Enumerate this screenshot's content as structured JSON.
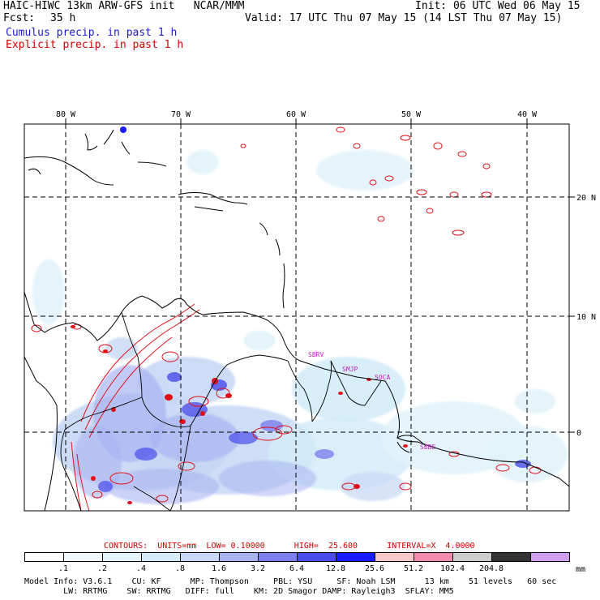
{
  "header": {
    "title": "HAIC-HIWC 13km ARW-GFS init   NCAR/MMM",
    "init": "Init: 06 UTC Wed 06 May 15",
    "fcst_label": "Fcst:",
    "fcst_value": "35 h",
    "valid": "Valid: 17 UTC Thu 07 May 15 (14 LST Thu 07 May 15)",
    "cumulus_label": "Cumulus precip. in past 1 h",
    "explicit_label": "Explicit precip. in past 1 h"
  },
  "map": {
    "lon_labels": [
      "80 W",
      "70 W",
      "60 W",
      "50 W",
      "40 W"
    ],
    "lat_labels": [
      "20 N",
      "10 N",
      "0"
    ],
    "station_labels": [
      "SBRV",
      "SMJP",
      "SOCA",
      "SBBE"
    ],
    "colors": {
      "coast": "#000000",
      "grid": "#000000",
      "explicit_contour": "#e0101a",
      "station": "#c020c0"
    }
  },
  "contours": {
    "text": "CONTOURS:  UNITS=mm  LOW= 0.10000      HIGH=  25.600      INTERVAL=X  4.0000"
  },
  "colorbar": {
    "labels": [
      ".1",
      ".2",
      ".4",
      ".8",
      "1.6",
      "3.2",
      "6.4",
      "12.8",
      "25.6",
      "51.2",
      "102.4",
      "204.8"
    ],
    "unit": "mm",
    "colors": [
      "#ffffff",
      "#f0f8ff",
      "#e2f3fb",
      "#d4ecf8",
      "#c6d8f5",
      "#a8b4f2",
      "#7c80ee",
      "#4a4cea",
      "#1a1aff",
      "#f8c8c8",
      "#f08cb0",
      "#cccccc",
      "#333333",
      "#d0a0f0"
    ]
  },
  "footer": {
    "line1": "Model Info: V3.6.1    CU: KF      MP: Thompson     PBL: YSU     SF: Noah LSM      13 km    51 levels   60 sec",
    "line2": "        LW: RRTMG    SW: RRTMG   DIFF: full    KM: 2D Smagor DAMP: Rayleigh3  SFLAY: MM5"
  }
}
